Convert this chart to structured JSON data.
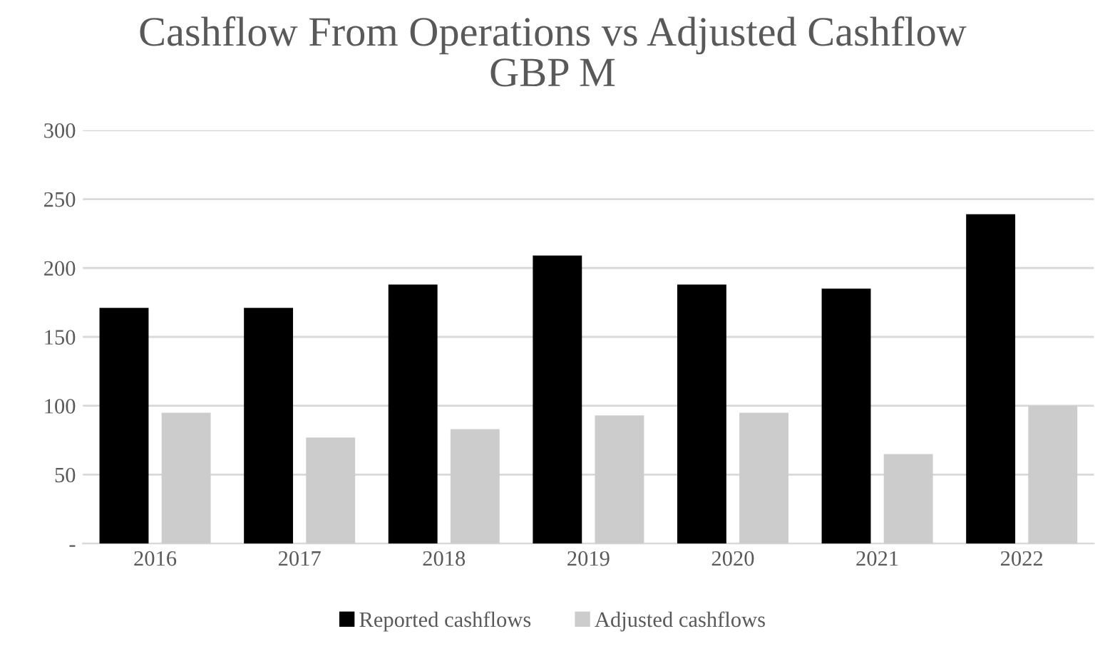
{
  "chart_data": {
    "type": "bar",
    "title": "Cashflow From Operations vs Adjusted Cashflow\nGBP M",
    "categories": [
      "2016",
      "2017",
      "2018",
      "2019",
      "2020",
      "2021",
      "2022"
    ],
    "series": [
      {
        "name": "Reported cashflows",
        "color": "#000000",
        "values": [
          171,
          171,
          188,
          209,
          188,
          185,
          239
        ]
      },
      {
        "name": "Adjusted cashflows",
        "color": "#cccccc",
        "values": [
          95,
          77,
          83,
          93,
          95,
          65,
          100
        ]
      }
    ],
    "ylim": [
      0,
      300
    ],
    "yticks": [
      {
        "value": 0,
        "label": "-"
      },
      50,
      100,
      150,
      200,
      250,
      300
    ],
    "grid": "y",
    "legend": "bottom"
  }
}
